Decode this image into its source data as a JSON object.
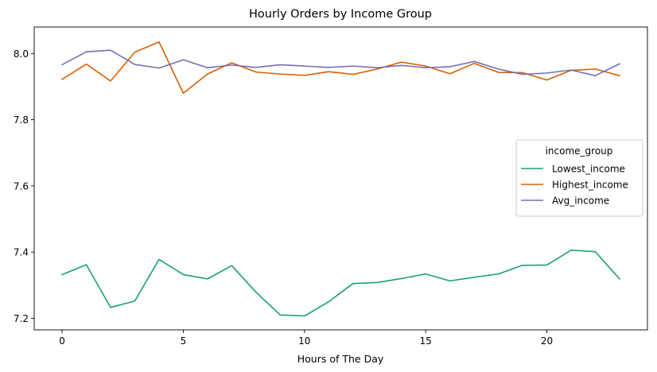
{
  "chart_data": {
    "type": "line",
    "title": "Hourly Orders by Income Group",
    "xlabel": "Hours of The Day",
    "ylabel": "",
    "xlim": [
      -1.15,
      24.15
    ],
    "ylim": [
      7.165,
      8.08
    ],
    "xticks": [
      0,
      5,
      10,
      15,
      20
    ],
    "yticks": [
      7.2,
      7.4,
      7.6,
      7.8,
      8.0
    ],
    "ytick_labels": [
      "7.2",
      "7.4",
      "7.6",
      "7.8",
      "8.0"
    ],
    "grid": false,
    "legend": {
      "title": "income_group",
      "position": "center-right"
    },
    "x": [
      0,
      1,
      2,
      3,
      4,
      5,
      6,
      7,
      8,
      9,
      10,
      11,
      12,
      13,
      14,
      15,
      16,
      17,
      18,
      19,
      20,
      21,
      22,
      23
    ],
    "series": [
      {
        "name": "Lowest_income",
        "color": "#1b9e77",
        "values": [
          7.332,
          7.362,
          7.233,
          7.252,
          7.378,
          7.332,
          7.319,
          7.359,
          7.279,
          7.21,
          7.207,
          7.25,
          7.305,
          7.308,
          7.32,
          7.334,
          7.313,
          7.324,
          7.334,
          7.36,
          7.361,
          7.406,
          7.401,
          7.319
        ]
      },
      {
        "name": "Highest_income",
        "color": "#d95f02",
        "values": [
          7.922,
          7.968,
          7.917,
          8.004,
          8.035,
          7.88,
          7.938,
          7.972,
          7.944,
          7.938,
          7.934,
          7.945,
          7.937,
          7.953,
          7.974,
          7.962,
          7.939,
          7.97,
          7.943,
          7.942,
          7.92,
          7.949,
          7.953,
          7.933
        ]
      },
      {
        "name": "Avg_income",
        "color": "#7570b3",
        "values": [
          7.966,
          8.005,
          8.01,
          7.967,
          7.956,
          7.981,
          7.957,
          7.965,
          7.958,
          7.966,
          7.962,
          7.958,
          7.962,
          7.957,
          7.964,
          7.957,
          7.96,
          7.976,
          7.953,
          7.937,
          7.941,
          7.95,
          7.933,
          7.969
        ]
      }
    ]
  }
}
